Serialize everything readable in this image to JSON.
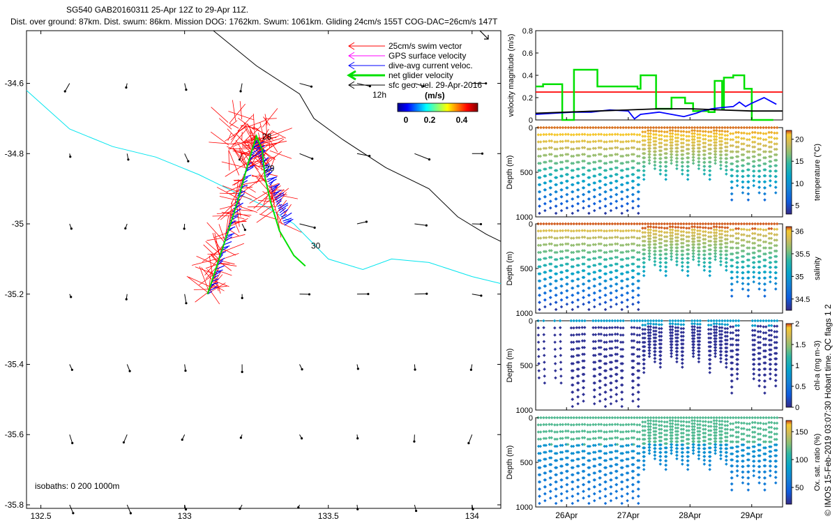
{
  "header": {
    "line1": "SG540 GAB20160311 25-Apr 12Z to 29-Apr 11Z.",
    "line2": "Dist. over ground: 87km. Dist. swum: 86km. Mission DOG: 1762km. Swum: 1061km. Gliding 24cm/s 155T COG-DAC=26cm/s 147T"
  },
  "credit": "© IMOS 15-Feb-2019 03:07:30 Hobart time. QC flags 1  2",
  "chart_data": [
    {
      "type": "map",
      "xticks": [
        "132.5",
        "133",
        "133.5",
        "134"
      ],
      "xtick_values": [
        132.5,
        133.0,
        133.5,
        134.0
      ],
      "yticks": [
        "-34.6",
        "-34.8",
        "-35",
        "-35.2",
        "-35.4",
        "-35.6",
        "-35.8"
      ],
      "ytick_values": [
        -34.6,
        -34.8,
        -35.0,
        -35.2,
        -35.4,
        -35.6,
        -35.8
      ],
      "xlim": [
        132.45,
        134.1
      ],
      "ylim": [
        -35.81,
        -34.45
      ],
      "legend": [
        {
          "label": "25cm/s swim vector",
          "color": "#ff0000"
        },
        {
          "label": "GPS surface velocity",
          "color": "#ff00ff"
        },
        {
          "label": "dive-avg current veloc.",
          "color": "#0000ff"
        },
        {
          "label": "net glider velocity",
          "color": "#00e000"
        },
        {
          "label": "sfc geo. vel. 29-Apr-2016",
          "color": "#000000"
        }
      ],
      "legend_extra": "12h",
      "colorbar": {
        "title": "(m/s)",
        "ticks": [
          "0",
          "0.2",
          "0.4"
        ],
        "range": [
          0,
          0.5
        ]
      },
      "isobath_note": "isobaths: 0   200  1000m",
      "day_labels": [
        {
          "text": "28",
          "lon": 133.27,
          "lat": -34.76
        },
        {
          "text": "29",
          "lon": 133.28,
          "lat": -34.85
        },
        {
          "text": "30",
          "lon": 133.44,
          "lat": -35.07
        }
      ],
      "track": [
        [
          133.08,
          -35.2
        ],
        [
          133.12,
          -35.1
        ],
        [
          133.16,
          -35.0
        ],
        [
          133.19,
          -34.92
        ],
        [
          133.22,
          -34.83
        ],
        [
          133.25,
          -34.75
        ],
        [
          133.27,
          -34.79
        ],
        [
          133.28,
          -34.87
        ],
        [
          133.3,
          -34.94
        ],
        [
          133.33,
          -35.02
        ],
        [
          133.38,
          -35.09
        ],
        [
          133.42,
          -35.12
        ]
      ],
      "isobath_200": [
        [
          132.45,
          -34.62
        ],
        [
          132.6,
          -34.73
        ],
        [
          132.75,
          -34.78
        ],
        [
          132.9,
          -34.81
        ],
        [
          133.05,
          -34.86
        ],
        [
          133.15,
          -34.9
        ],
        [
          133.28,
          -34.95
        ],
        [
          133.38,
          -35.0
        ],
        [
          133.5,
          -35.1
        ],
        [
          133.62,
          -35.13
        ],
        [
          133.72,
          -35.1
        ],
        [
          133.85,
          -35.11
        ],
        [
          134.0,
          -35.15
        ],
        [
          134.1,
          -35.17
        ]
      ],
      "isobath_1000": [
        [
          133.1,
          -34.45
        ],
        [
          133.25,
          -34.55
        ],
        [
          133.4,
          -34.63
        ],
        [
          133.45,
          -34.7
        ],
        [
          133.55,
          -34.76
        ],
        [
          133.7,
          -34.84
        ],
        [
          133.85,
          -34.9
        ],
        [
          133.95,
          -34.98
        ],
        [
          134.05,
          -35.03
        ],
        [
          134.1,
          -35.05
        ]
      ],
      "vector_grid": {
        "lons": [
          132.6,
          132.8,
          133.0,
          133.2,
          133.4,
          133.6,
          133.8,
          134.0
        ],
        "lats": [
          -34.6,
          -34.8,
          -35.0,
          -35.2,
          -35.4,
          -35.6,
          -35.8
        ]
      }
    },
    {
      "type": "line",
      "ylabel": "velocity magnitude (m/s)",
      "ylim": [
        0,
        0.8
      ],
      "yticks": [
        "0",
        "0.2",
        "0.4",
        "0.6",
        "0.8"
      ],
      "xlim": [
        25.5,
        29.5
      ],
      "series": [
        {
          "color": "#ff0000",
          "x": [
            25.5,
            29.5
          ],
          "y": [
            0.25,
            0.25
          ]
        },
        {
          "color": "#00e000",
          "x": [
            25.5,
            25.62,
            25.62,
            25.93,
            25.93,
            26.12,
            26.12,
            26.5,
            26.5,
            27.15,
            27.15,
            27.2,
            27.2,
            27.45,
            27.45,
            27.7,
            27.7,
            27.92,
            27.92,
            28.05,
            28.05,
            28.3,
            28.3,
            28.4,
            28.4,
            28.52,
            28.52,
            28.55,
            28.55,
            28.7,
            28.7,
            28.88,
            28.88,
            29.0,
            29.0,
            29.35
          ],
          "y": [
            0.3,
            0.3,
            0.32,
            0.32,
            0.0,
            0.0,
            0.45,
            0.45,
            0.3,
            0.3,
            0.28,
            0.28,
            0.4,
            0.4,
            0.1,
            0.1,
            0.2,
            0.2,
            0.15,
            0.15,
            0.08,
            0.08,
            0.07,
            0.07,
            0.35,
            0.35,
            0.1,
            0.1,
            0.38,
            0.38,
            0.4,
            0.4,
            0.28,
            0.28,
            0.0,
            0.0
          ]
        },
        {
          "color": "#0000ff",
          "x": [
            25.5,
            25.8,
            26.1,
            26.4,
            26.7,
            27.0,
            27.1,
            27.2,
            27.5,
            27.9,
            28.1,
            28.2,
            28.35,
            28.5,
            28.7,
            28.8,
            28.9,
            29.0,
            29.2,
            29.4
          ],
          "y": [
            0.05,
            0.06,
            0.07,
            0.07,
            0.09,
            0.08,
            0.01,
            0.05,
            0.07,
            0.03,
            0.06,
            0.08,
            0.1,
            0.11,
            0.12,
            0.16,
            0.12,
            0.15,
            0.2,
            0.14
          ]
        },
        {
          "color": "#000000",
          "x": [
            25.5,
            26.0,
            26.5,
            27.0,
            27.5,
            28.0,
            28.5,
            29.0,
            29.5
          ],
          "y": [
            0.06,
            0.07,
            0.08,
            0.09,
            0.1,
            0.1,
            0.09,
            0.08,
            0.08
          ]
        }
      ]
    },
    {
      "type": "scatter",
      "ylabel": "Depth (m)",
      "ylim": [
        1000,
        0
      ],
      "yticks": [
        "0",
        "500",
        "1000"
      ],
      "cbar_label": "temperature (°C)",
      "cbar_ticks": [
        "5",
        "10",
        "15",
        "20"
      ],
      "cbar_range": [
        3,
        22
      ]
    },
    {
      "type": "scatter",
      "ylabel": "Depth (m)",
      "ylim": [
        1000,
        0
      ],
      "yticks": [
        "0",
        "500",
        "1000"
      ],
      "cbar_label": "salinity",
      "cbar_ticks": [
        "34.5",
        "35",
        "35.5",
        "36"
      ],
      "cbar_range": [
        34.25,
        36.1
      ]
    },
    {
      "type": "scatter",
      "ylabel": "Depth (m)",
      "ylim": [
        1000,
        0
      ],
      "yticks": [
        "0",
        "500",
        "1000"
      ],
      "cbar_label": "chl-a (mg m-3)",
      "cbar_ticks": [
        "0",
        "0.5",
        "1",
        "1.5",
        "2"
      ],
      "cbar_range": [
        0,
        2
      ]
    },
    {
      "type": "scatter",
      "ylabel": "Depth (m)",
      "ylim": [
        1000,
        0
      ],
      "yticks": [
        "0",
        "500",
        "1000"
      ],
      "cbar_label": "Ox. sat. ratio (%)",
      "cbar_ticks": [
        "50",
        "100",
        "150"
      ],
      "cbar_range": [
        20,
        170
      ],
      "xticks": [
        "26Apr",
        "27Apr",
        "28Apr",
        "29Apr"
      ],
      "xtick_values": [
        26,
        27,
        28,
        29
      ],
      "xlim": [
        25.5,
        29.5
      ]
    }
  ]
}
